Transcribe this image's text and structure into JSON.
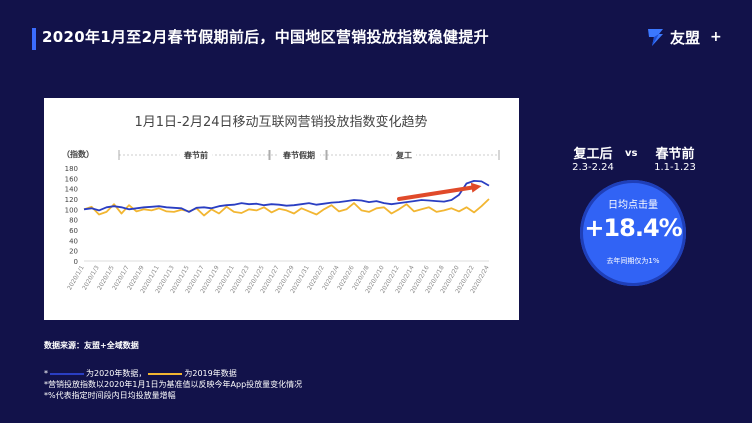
{
  "header": {
    "title": "2020年1月至2月春节假期前后，中国地区营销投放指数稳健提升",
    "logo_text": "友盟",
    "logo_plus": "+"
  },
  "colors": {
    "background": "#12124a",
    "accent": "#3b6cff",
    "series_2020": "#2a3ec2",
    "series_2019": "#f2b632",
    "arrow": "#e04a2a",
    "circle": "#3163f5"
  },
  "chart_data": {
    "type": "line",
    "title": "1月1日-2月24日移动互联网营销投放指数变化趋势",
    "ylabel": "（指数）",
    "ylim": [
      0,
      180
    ],
    "yticks": [
      0,
      20,
      40,
      60,
      80,
      100,
      120,
      140,
      160,
      180
    ],
    "grid": false,
    "periods": [
      "春节前",
      "春节假期",
      "复工"
    ],
    "x": [
      "2020/1/1",
      "2020/1/2",
      "2020/1/3",
      "2020/1/4",
      "2020/1/5",
      "2020/1/6",
      "2020/1/7",
      "2020/1/8",
      "2020/1/9",
      "2020/1/10",
      "2020/1/11",
      "2020/1/12",
      "2020/1/13",
      "2020/1/14",
      "2020/1/15",
      "2020/1/16",
      "2020/1/17",
      "2020/1/18",
      "2020/1/19",
      "2020/1/20",
      "2020/1/21",
      "2020/1/22",
      "2020/1/23",
      "2020/1/24",
      "2020/1/25",
      "2020/1/26",
      "2020/1/27",
      "2020/1/28",
      "2020/1/29",
      "2020/1/30",
      "2020/1/31",
      "2020/2/1",
      "2020/2/2",
      "2020/2/3",
      "2020/2/4",
      "2020/2/5",
      "2020/2/6",
      "2020/2/7",
      "2020/2/8",
      "2020/2/9",
      "2020/2/10",
      "2020/2/11",
      "2020/2/12",
      "2020/2/13",
      "2020/2/14",
      "2020/2/15",
      "2020/2/16",
      "2020/2/17",
      "2020/2/18",
      "2020/2/19",
      "2020/2/20",
      "2020/2/21",
      "2020/2/22",
      "2020/2/23",
      "2020/2/24"
    ],
    "xtick_labels": [
      "2020/1/1",
      "2020/1/3",
      "2020/1/5",
      "2020/1/7",
      "2020/1/9",
      "2020/1/11",
      "2020/1/13",
      "2020/1/15",
      "2020/1/17",
      "2020/1/19",
      "2020/1/21",
      "2020/1/23",
      "2020/1/25",
      "2020/1/27",
      "2020/1/29",
      "2020/1/31",
      "2020/2/2",
      "2020/2/4",
      "2020/2/6",
      "2020/2/8",
      "2020/2/10",
      "2020/2/12",
      "2020/2/14",
      "2020/2/16",
      "2020/2/18",
      "2020/2/20",
      "2020/2/22",
      "2020/2/24"
    ],
    "series": [
      {
        "color": "#2a3ec2",
        "values": [
          100,
          102,
          98,
          104,
          106,
          104,
          100,
          102,
          104,
          105,
          106,
          104,
          103,
          102,
          95,
          103,
          104,
          102,
          106,
          108,
          109,
          112,
          110,
          111,
          108,
          110,
          109,
          107,
          108,
          110,
          112,
          109,
          111,
          113,
          114,
          116,
          118,
          117,
          114,
          116,
          112,
          110,
          112,
          114,
          116,
          118,
          117,
          116,
          115,
          118,
          128,
          150,
          155,
          154,
          146
        ]
      },
      {
        "color": "#f2b632",
        "values": [
          100,
          105,
          90,
          95,
          110,
          92,
          108,
          96,
          100,
          98,
          102,
          96,
          95,
          99,
          96,
          102,
          88,
          100,
          92,
          105,
          95,
          93,
          100,
          98,
          104,
          94,
          101,
          98,
          92,
          102,
          96,
          90,
          100,
          108,
          96,
          100,
          112,
          98,
          95,
          102,
          104,
          92,
          100,
          110,
          96,
          100,
          104,
          95,
          98,
          102,
          96,
          104,
          94,
          106,
          120
        ]
      }
    ],
    "trend_arrow": {
      "from": [
        42,
        120
      ],
      "to": [
        53,
        145
      ]
    }
  },
  "comparison": {
    "left_label": "复工后",
    "left_date": "2.3-2.24",
    "vs": "vs",
    "right_label": "春节前",
    "right_date": "1.1-1.23"
  },
  "highlight": {
    "label": "日均点击量",
    "value": "+18.4%",
    "note": "去年同期仅为1%"
  },
  "notes": {
    "source": "数据来源：友盟+全域数据",
    "legend_2020": "为2020年数据，",
    "legend_2019": "为2019年数据",
    "line_3": "*营销投放指数以2020年1月1日为基准值以反映今年App投放量变化情况",
    "line_4": "*%代表指定时间段内日均投放量增幅"
  }
}
